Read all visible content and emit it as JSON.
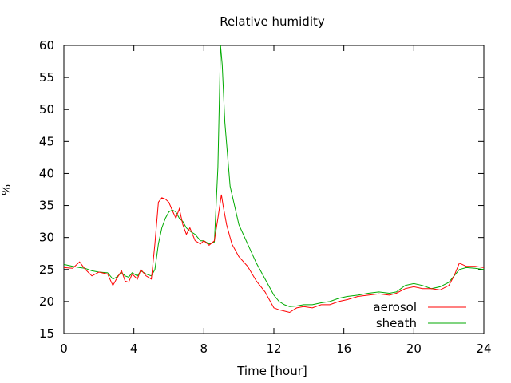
{
  "chart_data": {
    "type": "line",
    "title": "Relative humidity",
    "xlabel": "Time [hour]",
    "ylabel": "%",
    "xlim": [
      0,
      24
    ],
    "ylim": [
      15,
      60
    ],
    "xticks": [
      0,
      4,
      8,
      12,
      16,
      20,
      24
    ],
    "yticks": [
      15,
      20,
      25,
      30,
      35,
      40,
      45,
      50,
      55,
      60
    ],
    "grid": false,
    "legend_position": "bottom-right",
    "series": [
      {
        "name": "aerosol",
        "color": "#ff0000",
        "x": [
          0,
          0.5,
          0.9,
          1.2,
          1.6,
          2.0,
          2.5,
          2.8,
          3.0,
          3.3,
          3.5,
          3.7,
          3.9,
          4.2,
          4.4,
          4.7,
          5.0,
          5.2,
          5.4,
          5.6,
          5.8,
          6.0,
          6.2,
          6.4,
          6.6,
          6.8,
          7.0,
          7.2,
          7.5,
          7.8,
          8.0,
          8.3,
          8.6,
          8.8,
          9.0,
          9.1,
          9.3,
          9.6,
          10.0,
          10.5,
          11.0,
          11.5,
          12.0,
          12.3,
          12.6,
          12.9,
          13.3,
          13.7,
          14.2,
          14.7,
          15.2,
          15.7,
          16.2,
          16.8,
          17.4,
          18.0,
          18.6,
          19.0,
          19.5,
          20.0,
          20.5,
          21.0,
          21.5,
          22.0,
          22.3,
          22.6,
          23.0,
          23.5,
          24.0
        ],
        "y": [
          25.3,
          25.2,
          26.2,
          25.1,
          24.0,
          24.6,
          24.3,
          22.5,
          23.5,
          24.8,
          23.2,
          23.0,
          24.3,
          23.5,
          25.0,
          24.0,
          23.5,
          29.0,
          35.5,
          36.2,
          36.0,
          35.5,
          34.2,
          33.0,
          34.5,
          32.0,
          30.5,
          31.5,
          29.5,
          29.0,
          29.5,
          28.8,
          29.5,
          33.0,
          36.7,
          35.0,
          32.0,
          29.0,
          27.0,
          25.5,
          23.2,
          21.5,
          19.0,
          18.7,
          18.5,
          18.3,
          19.0,
          19.2,
          19.0,
          19.5,
          19.5,
          20.0,
          20.3,
          20.8,
          21.0,
          21.2,
          21.0,
          21.3,
          22.0,
          22.3,
          22.0,
          22.0,
          21.8,
          22.5,
          24.0,
          26.0,
          25.5,
          25.5,
          25.3
        ]
      },
      {
        "name": "sheath",
        "color": "#00aa00",
        "x": [
          0,
          0.5,
          0.9,
          1.2,
          1.6,
          2.0,
          2.5,
          2.8,
          3.0,
          3.3,
          3.5,
          3.7,
          3.9,
          4.2,
          4.4,
          4.7,
          5.0,
          5.2,
          5.4,
          5.6,
          5.8,
          6.0,
          6.2,
          6.4,
          6.6,
          6.8,
          7.0,
          7.2,
          7.5,
          7.8,
          8.0,
          8.3,
          8.6,
          8.8,
          8.95,
          9.05,
          9.2,
          9.5,
          10.0,
          10.5,
          11.0,
          11.5,
          12.0,
          12.3,
          12.6,
          12.9,
          13.3,
          13.7,
          14.2,
          14.7,
          15.2,
          15.7,
          16.2,
          16.8,
          17.4,
          18.0,
          18.6,
          19.0,
          19.5,
          20.0,
          20.5,
          21.0,
          21.5,
          22.0,
          22.3,
          22.6,
          23.0,
          23.5,
          24.0
        ],
        "y": [
          25.8,
          25.5,
          25.3,
          25.2,
          24.8,
          24.6,
          24.5,
          23.5,
          23.8,
          24.5,
          24.0,
          23.8,
          24.5,
          24.0,
          24.8,
          24.3,
          24.0,
          25.0,
          29.0,
          31.5,
          33.0,
          34.0,
          34.3,
          34.0,
          33.0,
          32.5,
          31.5,
          31.0,
          30.5,
          29.5,
          29.5,
          29.0,
          29.3,
          41.0,
          60.0,
          57.0,
          48.0,
          38.0,
          32.0,
          29.0,
          26.0,
          23.5,
          21.0,
          20.0,
          19.5,
          19.2,
          19.3,
          19.5,
          19.5,
          19.8,
          20.0,
          20.5,
          20.8,
          21.0,
          21.3,
          21.5,
          21.3,
          21.5,
          22.5,
          22.8,
          22.5,
          22.0,
          22.3,
          23.0,
          24.0,
          25.0,
          25.3,
          25.2,
          25.0
        ]
      }
    ]
  }
}
